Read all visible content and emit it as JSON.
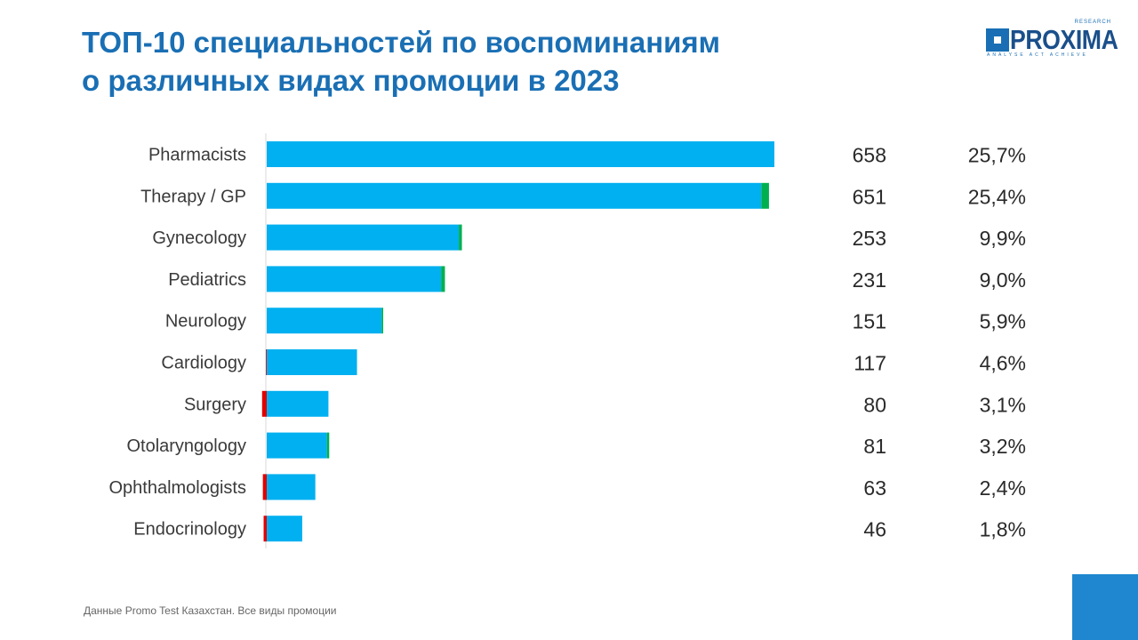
{
  "header": {
    "title_line1": "ТОП-10 специальностей по воспоминаниям",
    "title_line2": "о различных видах промоции в 2023"
  },
  "logo": {
    "word": "PROXIMA",
    "superscript": "RESEARCH",
    "tagline": "ANALYSE ACT ACHIEVE"
  },
  "footer": {
    "note": "Данные Promo  Test Казахстан.  Все виды промоции"
  },
  "colors": {
    "title": "#1a6fb4",
    "bar": "#00b0f0",
    "increase": "#00b050",
    "decrease": "#e00000",
    "corner_block": "#1f87cf"
  },
  "chart_data": {
    "type": "bar",
    "orientation": "horizontal",
    "categories": [
      "Pharmacists",
      "Therapy / GP",
      "Gynecology",
      "Pediatrics",
      "Neurology",
      "Cardiology",
      "Surgery",
      "Otolaryngology",
      "Ophthalmologists",
      "Endocrinology"
    ],
    "values": [
      658,
      651,
      253,
      231,
      151,
      117,
      80,
      81,
      63,
      46
    ],
    "value_labels": [
      "658",
      "651",
      "253",
      "231",
      "151",
      "117",
      "80",
      "81",
      "63",
      "46"
    ],
    "share_labels": [
      "25,7%",
      "25,4%",
      "9,9%",
      "9,0%",
      "5,9%",
      "4,6%",
      "3,1%",
      "3,2%",
      "2,4%",
      "1,8%"
    ],
    "changes": [
      0,
      10,
      4,
      5,
      2,
      -1,
      -6,
      3,
      -5,
      -4
    ],
    "xlim": [
      0,
      658
    ],
    "grid": false,
    "legend": "none"
  }
}
